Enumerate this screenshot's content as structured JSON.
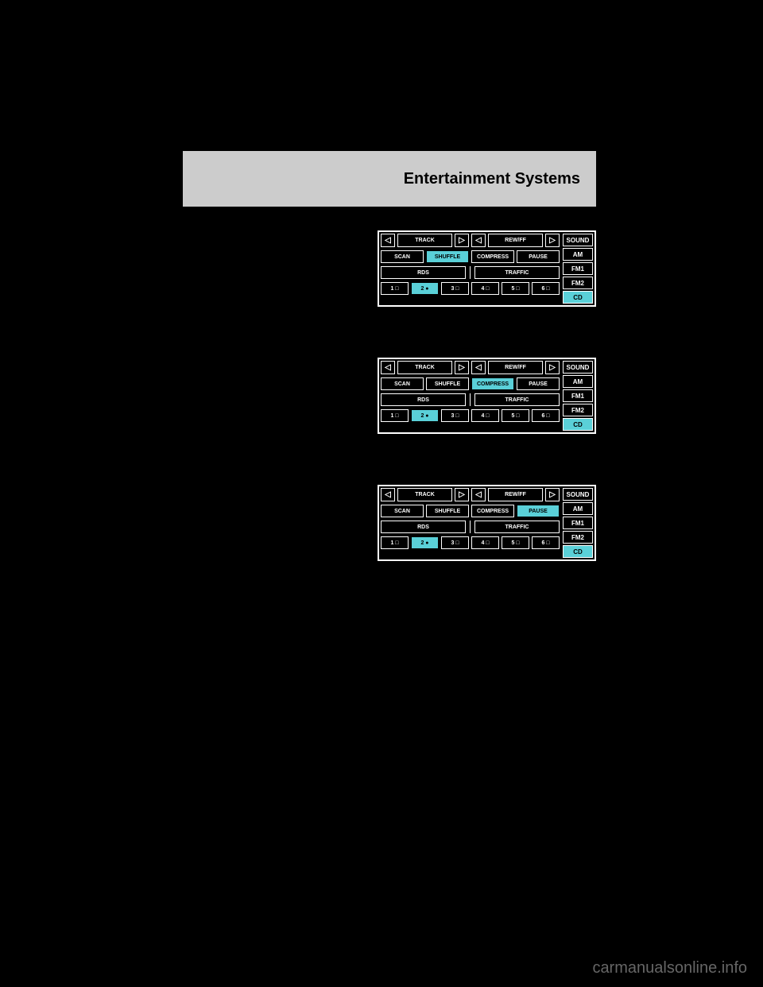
{
  "header": {
    "title": "Entertainment Systems"
  },
  "sections": [
    {
      "bodyText": ""
    },
    {
      "bodyText": ""
    },
    {
      "bodyText": ""
    }
  ],
  "radio": {
    "trackLabel": "TRACK",
    "rewFfLabel": "REW/FF",
    "scan": "SCAN",
    "shuffle": "SHUFFLE",
    "compress": "COMPRESS",
    "pause": "PAUSE",
    "rds": "RDS",
    "traffic": "TRAFFIC",
    "presets": [
      "1",
      "2",
      "3",
      "4",
      "5",
      "6"
    ],
    "presetActive": "2",
    "sound": "SOUND",
    "am": "AM",
    "fm1": "FM1",
    "fm2": "FM2",
    "cd": "CD",
    "arrows": {
      "left": "◁",
      "right": "▷"
    },
    "bullet": "●"
  },
  "panelHighlights": [
    {
      "shuffle": true,
      "compress": false,
      "pause": false
    },
    {
      "shuffle": false,
      "compress": true,
      "pause": false
    },
    {
      "shuffle": false,
      "compress": false,
      "pause": true
    }
  ],
  "watermark": "carmanualsonline.info",
  "colors": {
    "bg": "#000000",
    "headerBg": "#cccccc",
    "highlight": "#5ad0d8",
    "line": "#ffffff"
  }
}
